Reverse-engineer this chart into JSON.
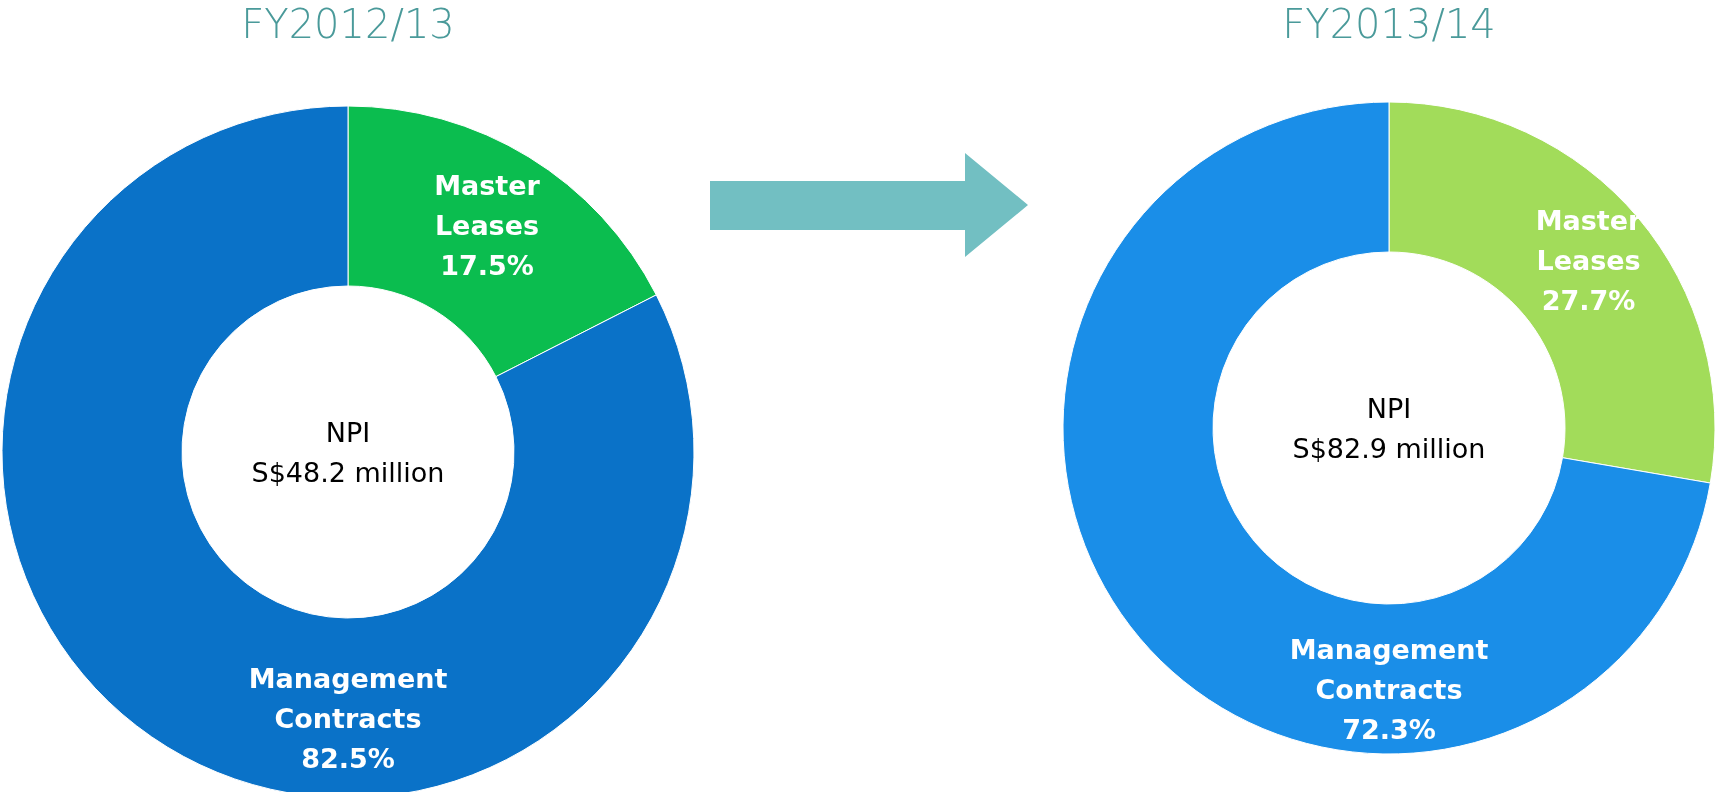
{
  "chart_data": [
    {
      "type": "donut",
      "title": "FY2012/13",
      "categories": [
        "Master Leases",
        "Management Contracts"
      ],
      "values": [
        17.5,
        82.5
      ],
      "colors": [
        "#0bbd4f",
        "#0a72c8"
      ],
      "value_labels": [
        "17.5%",
        "82.5%"
      ],
      "annotations": [
        "NPI",
        "S$48.2 million"
      ]
    },
    {
      "type": "donut",
      "title": "FY2013/14",
      "categories": [
        "Master Leases",
        "Management Contracts"
      ],
      "values": [
        27.7,
        72.3
      ],
      "colors": [
        "#a2dc5a",
        "#1a8ee8"
      ],
      "value_labels": [
        "27.7%",
        "72.3%"
      ],
      "annotations": [
        "NPI",
        "S$82.9 million"
      ]
    }
  ]
}
